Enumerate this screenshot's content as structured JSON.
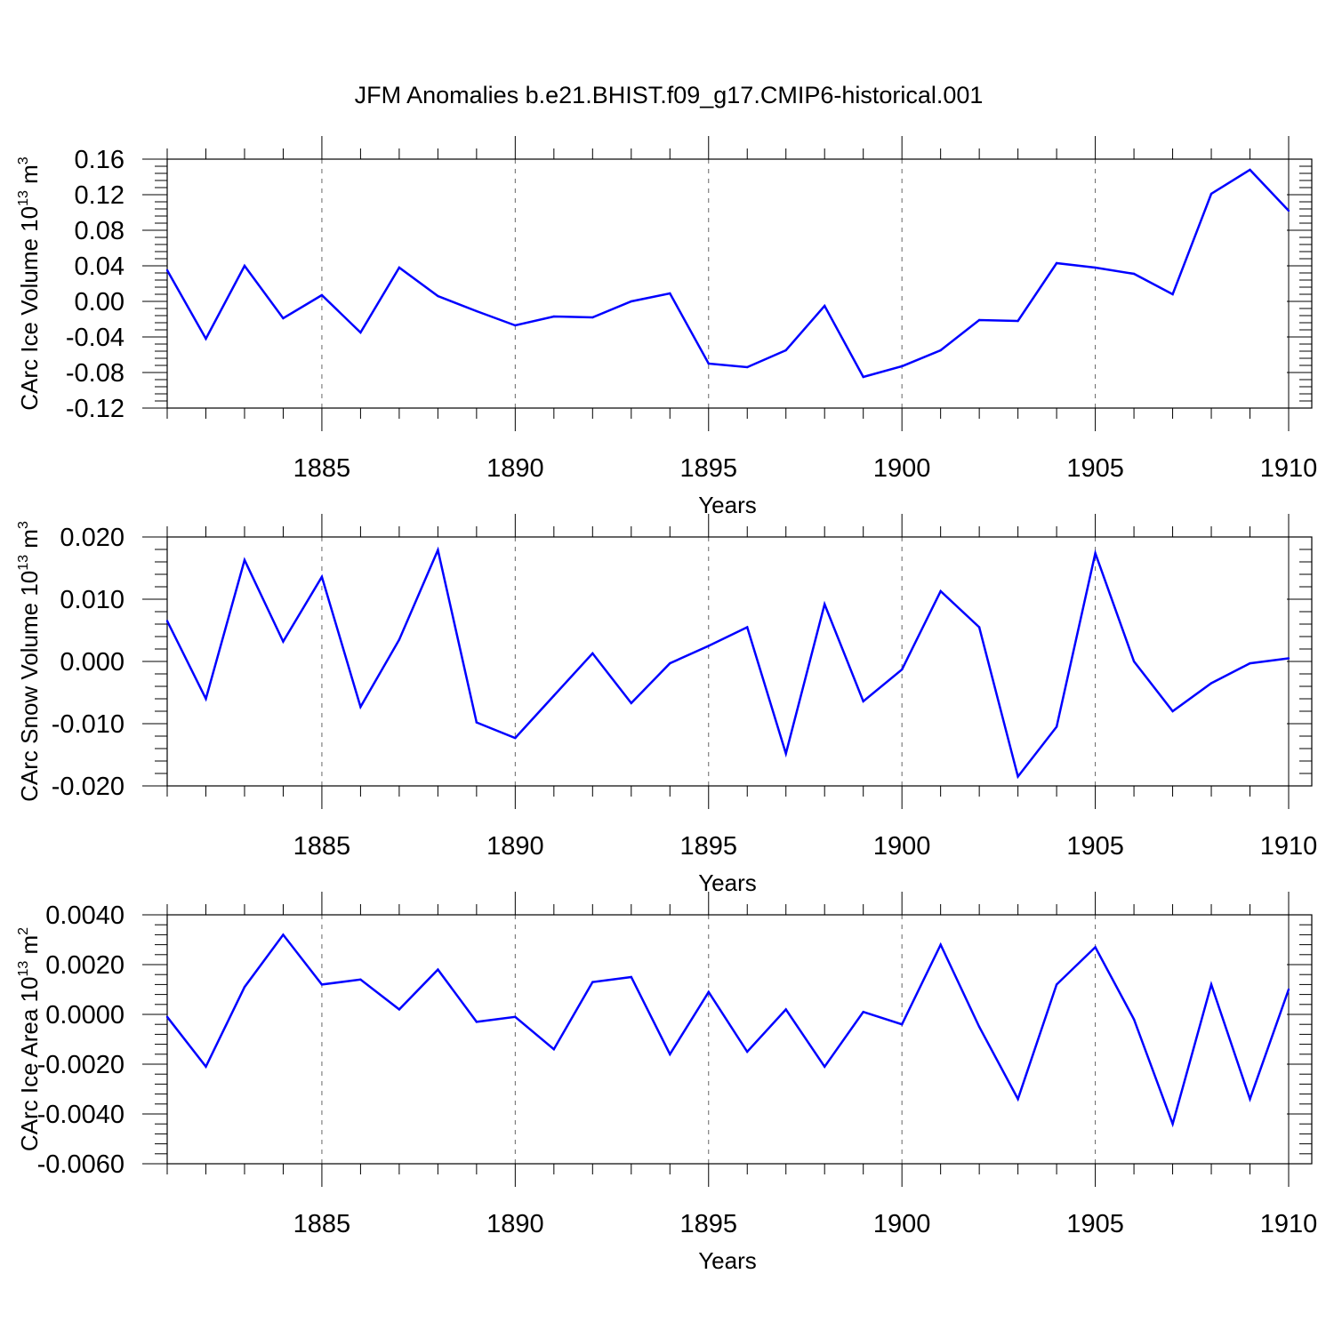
{
  "chart_data": {
    "title": "JFM Anomalies b.e21.BHIST.f09_g17.CMIP6-historical.001",
    "type": "line",
    "x": [
      1881,
      1882,
      1883,
      1884,
      1885,
      1886,
      1887,
      1888,
      1889,
      1890,
      1891,
      1892,
      1893,
      1894,
      1895,
      1896,
      1897,
      1898,
      1899,
      1900,
      1901,
      1902,
      1903,
      1904,
      1905,
      1906,
      1907,
      1908,
      1909,
      1910
    ],
    "xlim": [
      1881,
      1910
    ],
    "xticks": [
      1885,
      1890,
      1895,
      1900,
      1905,
      1910
    ],
    "xlabel": "Years",
    "line_color": "#0000ff",
    "panels": [
      {
        "name": "ice-volume",
        "ylabel": {
          "pre": "CArc Ice Volume 10",
          "exp": "13",
          "mid": " m",
          "unit_exp": "3"
        },
        "ylim": [
          -0.12,
          0.16
        ],
        "yticks": [
          "-0.12",
          "-0.08",
          "-0.04",
          "0.00",
          "0.04",
          "0.08",
          "0.12",
          "0.16"
        ],
        "values": [
          0.035,
          -0.042,
          0.04,
          -0.019,
          0.007,
          -0.035,
          0.038,
          0.006,
          -0.011,
          -0.027,
          -0.017,
          -0.018,
          0.0,
          0.009,
          -0.07,
          -0.074,
          -0.055,
          -0.005,
          -0.085,
          -0.073,
          -0.055,
          -0.021,
          -0.022,
          0.043,
          0.038,
          0.031,
          0.008,
          0.121,
          0.148,
          0.102
        ]
      },
      {
        "name": "snow-volume",
        "ylabel": {
          "pre": "CArc Snow Volume 10",
          "exp": "13",
          "mid": " m",
          "unit_exp": "3"
        },
        "ylim": [
          -0.02,
          0.02
        ],
        "yticks": [
          "-0.020",
          "-0.010",
          "0.000",
          "0.010",
          "0.020"
        ],
        "values": [
          0.0065,
          -0.006,
          0.0163,
          0.0032,
          0.0136,
          -0.0073,
          0.0035,
          0.0179,
          -0.0098,
          -0.0123,
          -0.0055,
          0.0013,
          -0.0067,
          -0.0003,
          0.0025,
          0.0055,
          -0.0148,
          0.0092,
          -0.0064,
          -0.0013,
          0.0113,
          0.0055,
          -0.0185,
          -0.0105,
          0.0174,
          0.0,
          -0.008,
          -0.0035,
          -0.0003,
          0.0005
        ]
      },
      {
        "name": "ice-area",
        "ylabel": {
          "pre": "CArc Ice Area 10",
          "exp": "13",
          "mid": " m",
          "unit_exp": "2"
        },
        "ylim": [
          -0.006,
          0.004
        ],
        "yticks": [
          "-0.0060",
          "-0.0040",
          "-0.0020",
          "0.0000",
          "0.0020",
          "0.0040"
        ],
        "values": [
          -0.0001,
          -0.0021,
          0.0011,
          0.0032,
          0.0012,
          0.0014,
          0.0002,
          0.0018,
          -0.0003,
          -0.0001,
          -0.0014,
          0.0013,
          0.0015,
          -0.0016,
          0.0009,
          -0.0015,
          0.0002,
          -0.0021,
          0.0001,
          -0.0004,
          0.0028,
          -0.0005,
          -0.0034,
          0.0012,
          0.0027,
          -0.0002,
          -0.0044,
          0.0012,
          -0.0034,
          0.001
        ]
      }
    ]
  }
}
